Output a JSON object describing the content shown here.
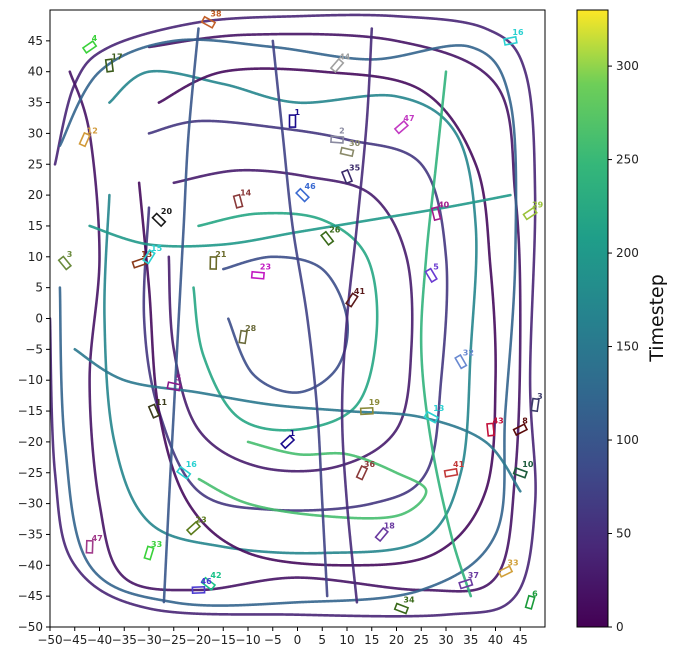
{
  "chart_data": {
    "type": "line",
    "title": "",
    "xlabel": "",
    "ylabel": "",
    "xlim": [
      -50,
      50
    ],
    "ylim": [
      -50,
      50
    ],
    "xticks": [
      -50,
      -45,
      -40,
      -35,
      -30,
      -25,
      -20,
      -15,
      -10,
      -5,
      0,
      5,
      10,
      15,
      20,
      25,
      30,
      35,
      40,
      45
    ],
    "yticks": [
      -50,
      -45,
      -40,
      -35,
      -30,
      -25,
      -20,
      -15,
      -10,
      -5,
      0,
      5,
      10,
      15,
      20,
      25,
      30,
      35,
      40,
      45
    ],
    "grid": false,
    "colorbar": {
      "label": "Timestep",
      "min": 0,
      "max": 330,
      "ticks": [
        0,
        50,
        100,
        150,
        200,
        250,
        300
      ],
      "colormap": "viridis"
    },
    "series": [
      {
        "color_t": 40,
        "points": [
          [
            -49,
            25
          ],
          [
            -45,
            38
          ],
          [
            -38,
            44
          ],
          [
            -20,
            48
          ],
          [
            0,
            49
          ],
          [
            20,
            49
          ],
          [
            38,
            47
          ],
          [
            46,
            40
          ],
          [
            48,
            20
          ],
          [
            47,
            -10
          ],
          [
            48,
            -30
          ],
          [
            44,
            -45
          ],
          [
            30,
            -48
          ],
          [
            0,
            -48
          ],
          [
            -30,
            -47
          ],
          [
            -45,
            -40
          ],
          [
            -49,
            -25
          ],
          [
            -50,
            0
          ]
        ]
      },
      {
        "color_t": 20,
        "points": [
          [
            -46,
            40
          ],
          [
            -42,
            30
          ],
          [
            -40,
            10
          ],
          [
            -42,
            -10
          ],
          [
            -40,
            -30
          ],
          [
            -35,
            -42
          ],
          [
            -20,
            -44
          ],
          [
            0,
            -42
          ],
          [
            25,
            -44
          ],
          [
            40,
            -42
          ],
          [
            44,
            -25
          ],
          [
            45,
            0
          ],
          [
            44,
            20
          ],
          [
            40,
            38
          ],
          [
            20,
            45
          ],
          [
            -10,
            46
          ],
          [
            -30,
            44
          ]
        ]
      },
      {
        "color_t": 120,
        "points": [
          [
            -48,
            28
          ],
          [
            -40,
            40
          ],
          [
            -25,
            45
          ],
          [
            -5,
            44
          ],
          [
            15,
            42
          ],
          [
            35,
            44
          ],
          [
            43,
            35
          ],
          [
            44,
            10
          ],
          [
            42,
            -15
          ],
          [
            40,
            -35
          ],
          [
            25,
            -44
          ],
          [
            0,
            -46
          ],
          [
            -25,
            -46
          ],
          [
            -42,
            -40
          ],
          [
            -47,
            -20
          ],
          [
            -48,
            5
          ]
        ]
      },
      {
        "color_t": 170,
        "points": [
          [
            -38,
            35
          ],
          [
            -30,
            40
          ],
          [
            -15,
            38
          ],
          [
            0,
            35
          ],
          [
            20,
            36
          ],
          [
            32,
            30
          ],
          [
            36,
            15
          ],
          [
            35,
            -5
          ],
          [
            33,
            -25
          ],
          [
            25,
            -36
          ],
          [
            5,
            -38
          ],
          [
            -15,
            -37
          ],
          [
            -30,
            -33
          ],
          [
            -37,
            -20
          ],
          [
            -39,
            0
          ],
          [
            -38,
            20
          ]
        ]
      },
      {
        "color_t": 60,
        "points": [
          [
            -30,
            30
          ],
          [
            -20,
            32
          ],
          [
            -5,
            31
          ],
          [
            10,
            29
          ],
          [
            25,
            25
          ],
          [
            30,
            10
          ],
          [
            29,
            -10
          ],
          [
            26,
            -25
          ],
          [
            15,
            -30
          ],
          [
            -5,
            -31
          ],
          [
            -20,
            -28
          ],
          [
            -28,
            -15
          ],
          [
            -31,
            0
          ],
          [
            -30,
            18
          ]
        ]
      },
      {
        "color_t": 30,
        "points": [
          [
            -25,
            22
          ],
          [
            -12,
            24
          ],
          [
            2,
            23
          ],
          [
            15,
            20
          ],
          [
            22,
            10
          ],
          [
            23,
            -5
          ],
          [
            20,
            -18
          ],
          [
            8,
            -24
          ],
          [
            -8,
            -24
          ],
          [
            -20,
            -18
          ],
          [
            -25,
            -5
          ],
          [
            -26,
            10
          ]
        ]
      },
      {
        "color_t": 220,
        "points": [
          [
            -20,
            15
          ],
          [
            -8,
            17
          ],
          [
            5,
            16
          ],
          [
            14,
            10
          ],
          [
            16,
            -2
          ],
          [
            12,
            -14
          ],
          [
            0,
            -18
          ],
          [
            -12,
            -16
          ],
          [
            -19,
            -6
          ],
          [
            -21,
            5
          ]
        ]
      },
      {
        "color_t": 90,
        "points": [
          [
            -15,
            8
          ],
          [
            -5,
            10
          ],
          [
            5,
            8
          ],
          [
            10,
            0
          ],
          [
            8,
            -8
          ],
          [
            0,
            -12
          ],
          [
            -9,
            -9
          ],
          [
            -14,
            0
          ]
        ]
      },
      {
        "color_t": 260,
        "points": [
          [
            -10,
            -20
          ],
          [
            0,
            -22
          ],
          [
            10,
            -22
          ],
          [
            20,
            -25
          ],
          [
            26,
            -28
          ],
          [
            20,
            -32
          ],
          [
            5,
            -32
          ],
          [
            -10,
            -30
          ],
          [
            -20,
            -26
          ]
        ]
      },
      {
        "color_t": 10,
        "points": [
          [
            -32,
            22
          ],
          [
            -30,
            5
          ],
          [
            -28,
            -15
          ],
          [
            -22,
            -30
          ],
          [
            -10,
            -38
          ],
          [
            10,
            -40
          ],
          [
            28,
            -38
          ],
          [
            38,
            -28
          ],
          [
            40,
            -10
          ],
          [
            39,
            8
          ],
          [
            36,
            25
          ],
          [
            25,
            37
          ],
          [
            5,
            40
          ],
          [
            -15,
            40
          ],
          [
            -28,
            35
          ]
        ]
      },
      {
        "color_t": 150,
        "points": [
          [
            -45,
            -5
          ],
          [
            -35,
            -10
          ],
          [
            -20,
            -12
          ],
          [
            -5,
            -14
          ],
          [
            10,
            -15
          ],
          [
            25,
            -16
          ],
          [
            38,
            -20
          ],
          [
            45,
            -28
          ]
        ]
      },
      {
        "color_t": 200,
        "points": [
          [
            -42,
            15
          ],
          [
            -30,
            12
          ],
          [
            -15,
            12
          ],
          [
            0,
            14
          ],
          [
            15,
            16
          ],
          [
            30,
            18
          ],
          [
            43,
            20
          ]
        ]
      },
      {
        "color_t": 75,
        "points": [
          [
            -5,
            45
          ],
          [
            -3,
            30
          ],
          [
            -1,
            15
          ],
          [
            2,
            0
          ],
          [
            4,
            -15
          ],
          [
            5,
            -30
          ],
          [
            6,
            -45
          ]
        ]
      },
      {
        "color_t": 45,
        "points": [
          [
            15,
            47
          ],
          [
            14,
            32
          ],
          [
            12,
            15
          ],
          [
            10,
            0
          ],
          [
            9,
            -15
          ],
          [
            10,
            -30
          ],
          [
            12,
            -46
          ]
        ]
      },
      {
        "color_t": 100,
        "points": [
          [
            -20,
            47
          ],
          [
            -22,
            30
          ],
          [
            -23,
            15
          ],
          [
            -24,
            0
          ],
          [
            -25,
            -15
          ],
          [
            -26,
            -30
          ],
          [
            -27,
            -46
          ]
        ]
      },
      {
        "color_t": 240,
        "points": [
          [
            30,
            40
          ],
          [
            28,
            25
          ],
          [
            26,
            10
          ],
          [
            25,
            -5
          ],
          [
            27,
            -20
          ],
          [
            31,
            -35
          ],
          [
            35,
            -45
          ]
        ]
      }
    ],
    "agents": [
      {
        "label": "1",
        "x": -1,
        "y": 32,
        "color": "#1a0a8c"
      },
      {
        "label": "1",
        "x": -2,
        "y": -20,
        "color": "#1a0a8c"
      },
      {
        "label": "2",
        "x": 8,
        "y": 29,
        "color": "#8a8aa0"
      },
      {
        "label": "3",
        "x": -47,
        "y": 9,
        "color": "#6a8a3c"
      },
      {
        "label": "3",
        "x": 48,
        "y": -14,
        "color": "#3c3c6a"
      },
      {
        "label": "4",
        "x": -42,
        "y": 44,
        "color": "#3ad13a"
      },
      {
        "label": "5",
        "x": -25,
        "y": -11,
        "color": "#8a1a8a"
      },
      {
        "label": "5",
        "x": 27,
        "y": 7,
        "color": "#6a3ad1"
      },
      {
        "label": "6",
        "x": 47,
        "y": -46,
        "color": "#1a9a3a"
      },
      {
        "label": "8",
        "x": 45,
        "y": -18,
        "color": "#5a0a0a"
      },
      {
        "label": "10",
        "x": 45,
        "y": -25,
        "color": "#1a5a3a"
      },
      {
        "label": "11",
        "x": -29,
        "y": -15,
        "color": "#3a3a1a"
      },
      {
        "label": "12",
        "x": -43,
        "y": 29,
        "color": "#d19a3a"
      },
      {
        "label": "13",
        "x": -32,
        "y": 9,
        "color": "#8a3a1a"
      },
      {
        "label": "13",
        "x": 27,
        "y": -16,
        "color": "#2ad1d1"
      },
      {
        "label": "14",
        "x": -12,
        "y": 19,
        "color": "#8a3a3a"
      },
      {
        "label": "15",
        "x": -30,
        "y": 10,
        "color": "#2ad1d1"
      },
      {
        "label": "16",
        "x": 43,
        "y": 45,
        "color": "#2ad1d1"
      },
      {
        "label": "16",
        "x": -23,
        "y": -25,
        "color": "#2ad1d1"
      },
      {
        "label": "17",
        "x": -38,
        "y": 41,
        "color": "#3a5a1a"
      },
      {
        "label": "18",
        "x": 17,
        "y": -35,
        "color": "#6a3aa0"
      },
      {
        "label": "19",
        "x": 14,
        "y": -15,
        "color": "#8a8a3a"
      },
      {
        "label": "20",
        "x": -28,
        "y": 16,
        "color": "#1a1a1a"
      },
      {
        "label": "21",
        "x": -17,
        "y": 9,
        "color": "#6a6a2a"
      },
      {
        "label": "23",
        "x": -21,
        "y": -34,
        "color": "#5a7a1a"
      },
      {
        "label": "23",
        "x": -8,
        "y": 7,
        "color": "#c21ac2"
      },
      {
        "label": "26",
        "x": 6,
        "y": 13,
        "color": "#3a6a1a"
      },
      {
        "label": "28",
        "x": -11,
        "y": -3,
        "color": "#6a6a3a"
      },
      {
        "label": "29",
        "x": 47,
        "y": 17,
        "color": "#9ac23a"
      },
      {
        "label": "30",
        "x": 10,
        "y": 27,
        "color": "#8a8a6a"
      },
      {
        "label": "32",
        "x": 33,
        "y": -7,
        "color": "#6a8ad1"
      },
      {
        "label": "33",
        "x": -30,
        "y": -38,
        "color": "#3ad13a"
      },
      {
        "label": "33",
        "x": 42,
        "y": -41,
        "color": "#d1a03a"
      },
      {
        "label": "34",
        "x": 21,
        "y": -47,
        "color": "#3a6a1a"
      },
      {
        "label": "35",
        "x": 10,
        "y": 23,
        "color": "#3a2a6a"
      },
      {
        "label": "36",
        "x": 13,
        "y": -25,
        "color": "#8a3a3a"
      },
      {
        "label": "37",
        "x": 34,
        "y": -43,
        "color": "#6a3aa0"
      },
      {
        "label": "38",
        "x": -18,
        "y": 48,
        "color": "#c2602a"
      },
      {
        "label": "40",
        "x": 28,
        "y": 17,
        "color": "#a01a8a"
      },
      {
        "label": "41",
        "x": 11,
        "y": 3,
        "color": "#5a1a1a"
      },
      {
        "label": "41",
        "x": 31,
        "y": -25,
        "color": "#c23a3a"
      },
      {
        "label": "42",
        "x": -18,
        "y": -43,
        "color": "#1ac28a"
      },
      {
        "label": "43",
        "x": 39,
        "y": -18,
        "color": "#c2103a"
      },
      {
        "label": "44",
        "x": 8,
        "y": 41,
        "color": "#a0a0a0"
      },
      {
        "label": "46",
        "x": -20,
        "y": -44,
        "color": "#4a3ad1"
      },
      {
        "label": "46",
        "x": 1,
        "y": 20,
        "color": "#3a6ad1"
      },
      {
        "label": "47",
        "x": -42,
        "y": -37,
        "color": "#a03a8a"
      },
      {
        "label": "47",
        "x": 21,
        "y": 31,
        "color": "#c23ac2"
      }
    ]
  }
}
